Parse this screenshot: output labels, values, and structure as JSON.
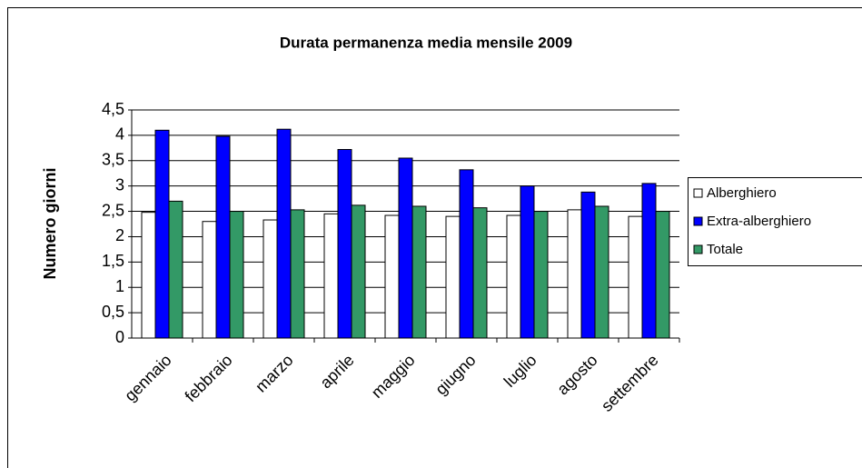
{
  "chart_data": {
    "type": "bar",
    "title": "Durata permanenza media mensile 2009",
    "y_label": "Numero giorni",
    "categories": [
      "gennaio",
      "febbraio",
      "marzo",
      "aprile",
      "maggio",
      "giugno",
      "luglio",
      "agosto",
      "settembre"
    ],
    "series": [
      {
        "name": "Alberghiero",
        "color": "#ffffff",
        "values": [
          2.48,
          2.3,
          2.33,
          2.45,
          2.42,
          2.4,
          2.42,
          2.53,
          2.4
        ]
      },
      {
        "name": "Extra-alberghiero",
        "color": "#0000ff",
        "values": [
          4.1,
          3.98,
          4.12,
          3.72,
          3.55,
          3.32,
          3.0,
          2.88,
          3.05
        ]
      },
      {
        "name": "Totale",
        "color": "#339966",
        "values": [
          2.7,
          2.5,
          2.53,
          2.62,
          2.6,
          2.57,
          2.5,
          2.6,
          2.5
        ]
      }
    ],
    "ylim": [
      0,
      4.5
    ],
    "yticks": [
      0,
      {
        "value": 0.5,
        "label": "0,5"
      },
      1,
      {
        "value": 1.5,
        "label": "1,5"
      },
      2,
      {
        "value": 2.5,
        "label": "2,5"
      },
      3,
      {
        "value": 3.5,
        "label": "3,5"
      },
      4,
      {
        "value": 4.5,
        "label": "4,5"
      }
    ],
    "grid": true,
    "legend": "right"
  }
}
